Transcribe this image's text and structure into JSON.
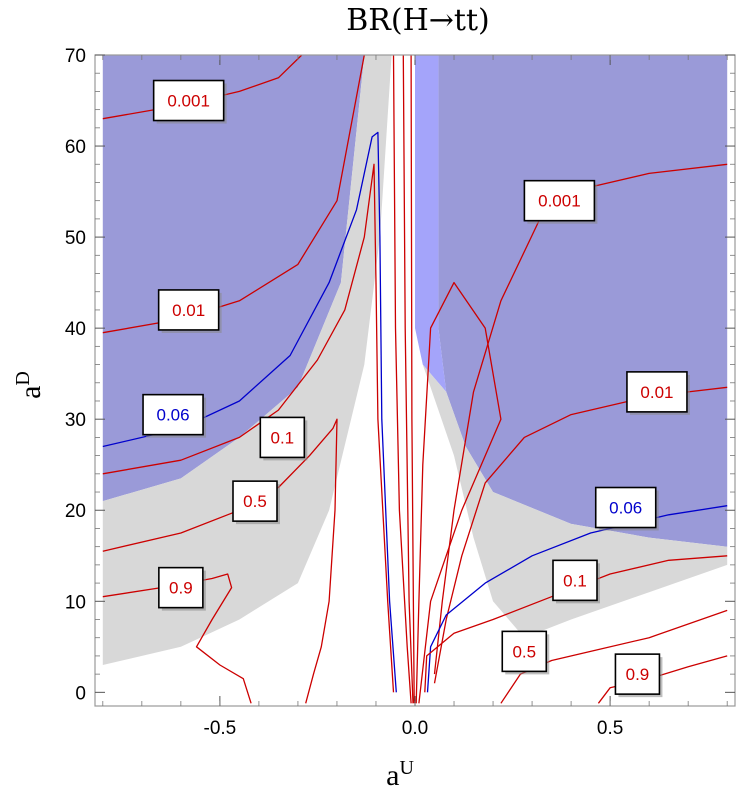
{
  "chart_data": {
    "type": "contour",
    "title": "BR(H→tt)",
    "xlabel_base": "a",
    "xlabel_sup": "U",
    "ylabel_base": "a",
    "ylabel_sup": "D",
    "xlim": [
      -0.82,
      0.82
    ],
    "ylim": [
      -1.5,
      70
    ],
    "x_ticks": [
      -0.5,
      0.0,
      0.5
    ],
    "x_tick_labels": [
      "-0.5",
      "0.0",
      "0.5"
    ],
    "y_ticks": [
      0,
      10,
      20,
      30,
      40,
      50,
      60,
      70
    ],
    "y_tick_labels": [
      "0",
      "10",
      "20",
      "30",
      "40",
      "50",
      "60",
      "70"
    ],
    "colors": {
      "excluded_region": "#9a9ad8",
      "excluded_region_light": "#a4a4fa",
      "grey_region": "#d8d8d8",
      "contour_red": "#cc0000",
      "contour_blue": "#0000cc"
    },
    "regions": [
      {
        "name": "excluded-left",
        "points": [
          [
            -0.8,
            70
          ],
          [
            -0.13,
            70
          ],
          [
            -0.19,
            45
          ],
          [
            -0.3,
            33.5
          ],
          [
            -0.45,
            28
          ],
          [
            -0.6,
            23.5
          ],
          [
            -0.8,
            21
          ]
        ]
      },
      {
        "name": "excluded-right",
        "points": [
          [
            0.06,
            70
          ],
          [
            0.8,
            70
          ],
          [
            0.8,
            16
          ],
          [
            0.6,
            17
          ],
          [
            0.4,
            18.5
          ],
          [
            0.2,
            22
          ],
          [
            0.13,
            27
          ],
          [
            0.08,
            33
          ],
          [
            0.06,
            40
          ]
        ]
      },
      {
        "name": "excluded-center",
        "points": [
          [
            0.0,
            70
          ],
          [
            0.06,
            70
          ],
          [
            0.06,
            40
          ],
          [
            0.08,
            33
          ],
          [
            0.02,
            36
          ],
          [
            0.0,
            40
          ]
        ]
      }
    ],
    "grey_regions": [
      {
        "name": "grey-left",
        "points": [
          [
            -0.8,
            21
          ],
          [
            -0.6,
            23.5
          ],
          [
            -0.45,
            28
          ],
          [
            -0.3,
            33.5
          ],
          [
            -0.19,
            45
          ],
          [
            -0.13,
            70
          ],
          [
            -0.06,
            70
          ],
          [
            -0.09,
            50
          ],
          [
            -0.13,
            36
          ],
          [
            -0.22,
            20
          ],
          [
            -0.3,
            12
          ],
          [
            -0.45,
            8
          ],
          [
            -0.6,
            5
          ],
          [
            -0.8,
            3
          ]
        ]
      },
      {
        "name": "grey-right",
        "points": [
          [
            0.08,
            33
          ],
          [
            0.13,
            27
          ],
          [
            0.2,
            22
          ],
          [
            0.4,
            18.5
          ],
          [
            0.6,
            17
          ],
          [
            0.8,
            16
          ],
          [
            0.8,
            14
          ],
          [
            0.6,
            11
          ],
          [
            0.4,
            8
          ],
          [
            0.28,
            6
          ],
          [
            0.2,
            10
          ],
          [
            0.15,
            17
          ],
          [
            0.1,
            26
          ],
          [
            0.02,
            36
          ]
        ]
      }
    ],
    "contours": [
      {
        "level": "0.001",
        "color": "red",
        "points": [
          [
            -0.8,
            63
          ],
          [
            -0.6,
            64.5
          ],
          [
            -0.45,
            66
          ],
          [
            -0.35,
            67.5
          ],
          [
            -0.29,
            70
          ]
        ]
      },
      {
        "level": "0.001",
        "color": "red",
        "points": [
          [
            0.05,
            2
          ],
          [
            0.07,
            10
          ],
          [
            0.1,
            20
          ],
          [
            0.15,
            33
          ],
          [
            0.22,
            43
          ],
          [
            0.32,
            52
          ],
          [
            0.45,
            55.5
          ],
          [
            0.6,
            57
          ],
          [
            0.8,
            58
          ]
        ]
      },
      {
        "level": "0.01",
        "color": "red",
        "points": [
          [
            -0.8,
            39.5
          ],
          [
            -0.6,
            41
          ],
          [
            -0.45,
            43
          ],
          [
            -0.3,
            47
          ],
          [
            -0.2,
            54
          ],
          [
            -0.13,
            70
          ]
        ]
      },
      {
        "level": "0.01",
        "color": "red",
        "points": [
          [
            0.05,
            1
          ],
          [
            0.08,
            8
          ],
          [
            0.12,
            15
          ],
          [
            0.18,
            23
          ],
          [
            0.28,
            28
          ],
          [
            0.4,
            30.5
          ],
          [
            0.55,
            32
          ],
          [
            0.7,
            33
          ],
          [
            0.8,
            33.5
          ]
        ]
      },
      {
        "level": "0.06",
        "color": "blue",
        "points": [
          [
            -0.8,
            27
          ],
          [
            -0.6,
            29
          ],
          [
            -0.45,
            32
          ],
          [
            -0.32,
            37
          ],
          [
            -0.22,
            45
          ],
          [
            -0.15,
            53
          ],
          [
            -0.11,
            61
          ],
          [
            -0.095,
            61.5
          ],
          [
            -0.09,
            50
          ],
          [
            -0.085,
            30
          ],
          [
            -0.065,
            10
          ],
          [
            -0.048,
            0
          ]
        ]
      },
      {
        "level": "0.06",
        "color": "blue",
        "points": [
          [
            0.032,
            0
          ],
          [
            0.04,
            5
          ],
          [
            0.08,
            8.5
          ],
          [
            0.18,
            12
          ],
          [
            0.3,
            15
          ],
          [
            0.45,
            17.5
          ],
          [
            0.65,
            19.5
          ],
          [
            0.8,
            20.5
          ]
        ]
      },
      {
        "level": "0.1",
        "color": "red",
        "points": [
          [
            -0.8,
            24
          ],
          [
            -0.6,
            25.5
          ],
          [
            -0.45,
            28
          ],
          [
            -0.35,
            31
          ],
          [
            -0.25,
            36.5
          ],
          [
            -0.18,
            42
          ],
          [
            -0.13,
            50
          ],
          [
            -0.105,
            58
          ],
          [
            -0.1,
            45
          ],
          [
            -0.095,
            30
          ],
          [
            -0.07,
            10
          ],
          [
            -0.055,
            0
          ]
        ]
      },
      {
        "level": "0.1",
        "color": "red",
        "points": [
          [
            0.025,
            0
          ],
          [
            0.03,
            4
          ],
          [
            0.1,
            6.5
          ],
          [
            0.2,
            8
          ],
          [
            0.35,
            10.5
          ],
          [
            0.5,
            13
          ],
          [
            0.65,
            14.5
          ],
          [
            0.8,
            15
          ]
        ]
      },
      {
        "level": "0.5",
        "color": "red",
        "points": [
          [
            -0.8,
            15.5
          ],
          [
            -0.6,
            17.5
          ],
          [
            -0.45,
            20
          ],
          [
            -0.35,
            22.5
          ],
          [
            -0.27,
            26
          ],
          [
            -0.21,
            29
          ],
          [
            -0.2,
            30
          ],
          [
            -0.205,
            20
          ],
          [
            -0.22,
            10
          ],
          [
            -0.24,
            5
          ],
          [
            -0.26,
            2
          ],
          [
            -0.28,
            -1.2
          ]
        ]
      },
      {
        "level": "0.5",
        "color": "red",
        "points": [
          [
            0.22,
            -1.2
          ],
          [
            0.27,
            2
          ],
          [
            0.35,
            3.5
          ],
          [
            0.45,
            4.5
          ],
          [
            0.6,
            6
          ],
          [
            0.8,
            9
          ]
        ]
      },
      {
        "level": "0.9",
        "color": "red",
        "points": [
          [
            -0.8,
            10.5
          ],
          [
            -0.65,
            11.5
          ],
          [
            -0.52,
            12.5
          ],
          [
            -0.48,
            13
          ],
          [
            -0.47,
            11.5
          ],
          [
            -0.52,
            8
          ],
          [
            -0.56,
            5
          ],
          [
            -0.5,
            3
          ],
          [
            -0.44,
            1.5
          ],
          [
            -0.42,
            -1.2
          ]
        ]
      },
      {
        "level": "0.9",
        "color": "red",
        "points": [
          [
            0.47,
            -1.2
          ],
          [
            0.5,
            0.5
          ],
          [
            0.6,
            1.5
          ],
          [
            0.7,
            2.8
          ],
          [
            0.8,
            4
          ]
        ]
      },
      {
        "level": "inner",
        "color": "red",
        "points": [
          [
            -0.055,
            70
          ],
          [
            -0.05,
            40
          ],
          [
            -0.04,
            20
          ],
          [
            -0.02,
            5
          ],
          [
            -0.01,
            -1.2
          ]
        ]
      },
      {
        "level": "inner",
        "color": "red",
        "points": [
          [
            -0.03,
            70
          ],
          [
            -0.025,
            40
          ],
          [
            -0.015,
            10
          ],
          [
            -0.005,
            -1.2
          ]
        ]
      },
      {
        "level": "inner",
        "color": "red",
        "points": [
          [
            -0.01,
            70
          ],
          [
            -0.008,
            30
          ],
          [
            -0.002,
            -1.2
          ]
        ]
      },
      {
        "level": "inner",
        "color": "red",
        "points": [
          [
            0.003,
            -1.2
          ],
          [
            0.01,
            10
          ],
          [
            0.02,
            25
          ],
          [
            0.04,
            40
          ],
          [
            0.1,
            45
          ],
          [
            0.18,
            40
          ],
          [
            0.22,
            30
          ],
          [
            0.12,
            20
          ],
          [
            0.04,
            10
          ],
          [
            0.01,
            -1.2
          ]
        ]
      }
    ],
    "labels": [
      {
        "text": "0.001",
        "color": "red",
        "x": -0.58,
        "y": 65
      },
      {
        "text": "0.001",
        "color": "red",
        "x": 0.37,
        "y": 54
      },
      {
        "text": "0.01",
        "color": "red",
        "x": -0.58,
        "y": 42
      },
      {
        "text": "0.01",
        "color": "red",
        "x": 0.62,
        "y": 33
      },
      {
        "text": "0.06",
        "color": "blue",
        "x": -0.62,
        "y": 30.5
      },
      {
        "text": "0.06",
        "color": "blue",
        "x": 0.54,
        "y": 20.3
      },
      {
        "text": "0.1",
        "color": "red",
        "x": -0.34,
        "y": 28
      },
      {
        "text": "0.1",
        "color": "red",
        "x": 0.41,
        "y": 12.3
      },
      {
        "text": "0.5",
        "color": "red",
        "x": -0.41,
        "y": 21
      },
      {
        "text": "0.5",
        "color": "red",
        "x": 0.28,
        "y": 4.5
      },
      {
        "text": "0.9",
        "color": "red",
        "x": -0.6,
        "y": 11.5
      },
      {
        "text": "0.9",
        "color": "red",
        "x": 0.57,
        "y": 2
      }
    ]
  }
}
